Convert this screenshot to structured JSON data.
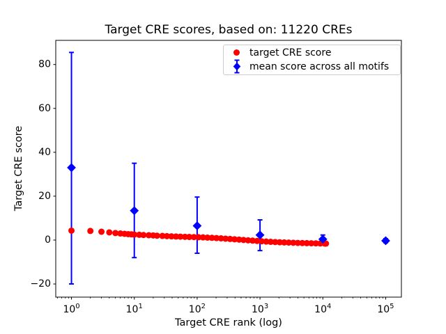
{
  "chart_data": {
    "type": "scatter",
    "title": "Target CRE scores, based on: 11220 CREs",
    "xlabel": "Target CRE rank (log)",
    "ylabel": "Target CRE score",
    "xscale": "log",
    "xlim_exp": [
      -0.25,
      5.25
    ],
    "ylim": [
      -26,
      91
    ],
    "xticks": [
      1,
      10,
      100,
      1000,
      10000,
      100000
    ],
    "xticklabels": [
      "10^0",
      "10^1",
      "10^2",
      "10^3",
      "10^4",
      "10^5"
    ],
    "yticks": [
      -20,
      0,
      20,
      40,
      60,
      80
    ],
    "yticklabels": [
      "−20",
      "0",
      "20",
      "40",
      "60",
      "80"
    ],
    "grid": false,
    "legend_position": "upper right",
    "colors": {
      "target": "#ff0000",
      "mean": "#0000ff",
      "axes": "#000000",
      "legend_border": "#cccccc"
    },
    "legend": [
      {
        "label": "target CRE score",
        "marker": "circle",
        "color": "#ff0000"
      },
      {
        "label": "mean score across all motifs",
        "marker": "diamond-errorbar",
        "color": "#0000ff"
      }
    ],
    "series": [
      {
        "name": "target CRE score",
        "marker": "circle",
        "color": "#ff0000",
        "points": [
          [
            1,
            4.3
          ],
          [
            2,
            4.15
          ],
          [
            3,
            3.8
          ],
          [
            4,
            3.5
          ],
          [
            5,
            3.2
          ],
          [
            6,
            3.0
          ],
          [
            7,
            2.85
          ],
          [
            8,
            2.7
          ],
          [
            9,
            2.6
          ],
          [
            10,
            2.5
          ],
          [
            12,
            2.4
          ],
          [
            14,
            2.3
          ],
          [
            17,
            2.2
          ],
          [
            20,
            2.1
          ],
          [
            23,
            2.0
          ],
          [
            28,
            1.9
          ],
          [
            33,
            1.8
          ],
          [
            39,
            1.7
          ],
          [
            46,
            1.62
          ],
          [
            54,
            1.55
          ],
          [
            64,
            1.48
          ],
          [
            75,
            1.42
          ],
          [
            89,
            1.36
          ],
          [
            105,
            1.3
          ],
          [
            124,
            1.22
          ],
          [
            146,
            1.12
          ],
          [
            172,
            1.02
          ],
          [
            203,
            0.9
          ],
          [
            240,
            0.78
          ],
          [
            283,
            0.65
          ],
          [
            334,
            0.5
          ],
          [
            394,
            0.35
          ],
          [
            465,
            0.2
          ],
          [
            548,
            0.05
          ],
          [
            647,
            -0.1
          ],
          [
            763,
            -0.25
          ],
          [
            900,
            -0.4
          ],
          [
            1062,
            -0.55
          ],
          [
            1253,
            -0.68
          ],
          [
            1479,
            -0.8
          ],
          [
            1745,
            -0.9
          ],
          [
            2059,
            -1.0
          ],
          [
            2430,
            -1.08
          ],
          [
            2867,
            -1.15
          ],
          [
            3383,
            -1.22
          ],
          [
            3992,
            -1.3
          ],
          [
            4711,
            -1.35
          ],
          [
            5559,
            -1.4
          ],
          [
            6559,
            -1.45
          ],
          [
            7740,
            -1.5
          ],
          [
            9133,
            -1.55
          ],
          [
            10777,
            -1.6
          ],
          [
            11220,
            -1.6
          ]
        ]
      },
      {
        "name": "mean score across all motifs",
        "marker": "diamond",
        "color": "#0000ff",
        "points": [
          {
            "x": 1,
            "y": 33.0,
            "lo": -20.0,
            "hi": 85.5
          },
          {
            "x": 10,
            "y": 13.4,
            "lo": -8.0,
            "hi": 35.0
          },
          {
            "x": 100,
            "y": 6.5,
            "lo": -6.0,
            "hi": 19.6
          },
          {
            "x": 1000,
            "y": 2.3,
            "lo": -4.8,
            "hi": 9.2
          },
          {
            "x": 10000,
            "y": 0.4,
            "lo": -1.5,
            "hi": 2.3
          },
          {
            "x": 100000,
            "y": -0.3,
            "lo": -1.2,
            "hi": 0.6
          }
        ]
      }
    ]
  }
}
